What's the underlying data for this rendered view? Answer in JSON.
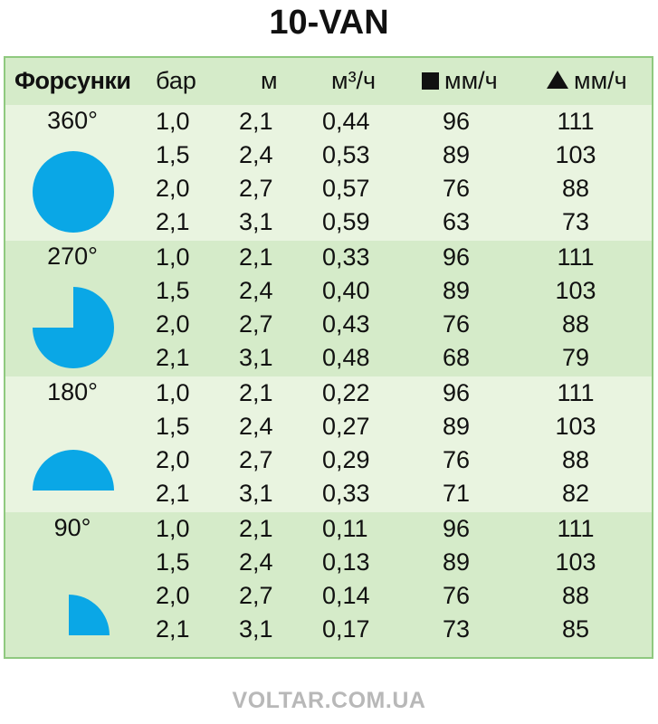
{
  "title": "10-VAN",
  "header": {
    "col_nozzles": "Форсунки",
    "col_pressure": "бар",
    "col_radius": "м",
    "col_flow": "м³/ч",
    "col_square": "мм/ч",
    "col_triangle": "мм/ч"
  },
  "colors": {
    "shape": "#0aa7e6",
    "row_light": "#e9f4e0",
    "row_dark": "#d5ebc9",
    "border": "#8fc97f"
  },
  "groups": [
    {
      "angle": "360°",
      "rows": [
        {
          "bar": "1,0",
          "m": "2,1",
          "flow": "0,44",
          "square": "96",
          "triangle": "111"
        },
        {
          "bar": "1,5",
          "m": "2,4",
          "flow": "0,53",
          "square": "89",
          "triangle": "103"
        },
        {
          "bar": "2,0",
          "m": "2,7",
          "flow": "0,57",
          "square": "76",
          "triangle": "88"
        },
        {
          "bar": "2,1",
          "m": "3,1",
          "flow": "0,59",
          "square": "63",
          "triangle": "73"
        }
      ]
    },
    {
      "angle": "270°",
      "rows": [
        {
          "bar": "1,0",
          "m": "2,1",
          "flow": "0,33",
          "square": "96",
          "triangle": "111"
        },
        {
          "bar": "1,5",
          "m": "2,4",
          "flow": "0,40",
          "square": "89",
          "triangle": "103"
        },
        {
          "bar": "2,0",
          "m": "2,7",
          "flow": "0,43",
          "square": "76",
          "triangle": "88"
        },
        {
          "bar": "2,1",
          "m": "3,1",
          "flow": "0,48",
          "square": "68",
          "triangle": "79"
        }
      ]
    },
    {
      "angle": "180°",
      "rows": [
        {
          "bar": "1,0",
          "m": "2,1",
          "flow": "0,22",
          "square": "96",
          "triangle": "111"
        },
        {
          "bar": "1,5",
          "m": "2,4",
          "flow": "0,27",
          "square": "89",
          "triangle": "103"
        },
        {
          "bar": "2,0",
          "m": "2,7",
          "flow": "0,29",
          "square": "76",
          "triangle": "88"
        },
        {
          "bar": "2,1",
          "m": "3,1",
          "flow": "0,33",
          "square": "71",
          "triangle": "82"
        }
      ]
    },
    {
      "angle": "90°",
      "rows": [
        {
          "bar": "1,0",
          "m": "2,1",
          "flow": "0,11",
          "square": "96",
          "triangle": "111"
        },
        {
          "bar": "1,5",
          "m": "2,4",
          "flow": "0,13",
          "square": "89",
          "triangle": "103"
        },
        {
          "bar": "2,0",
          "m": "2,7",
          "flow": "0,14",
          "square": "76",
          "triangle": "88"
        },
        {
          "bar": "2,1",
          "m": "3,1",
          "flow": "0,17",
          "square": "73",
          "triangle": "85"
        }
      ]
    }
  ],
  "footer": "VOLTAR.COM.UA"
}
